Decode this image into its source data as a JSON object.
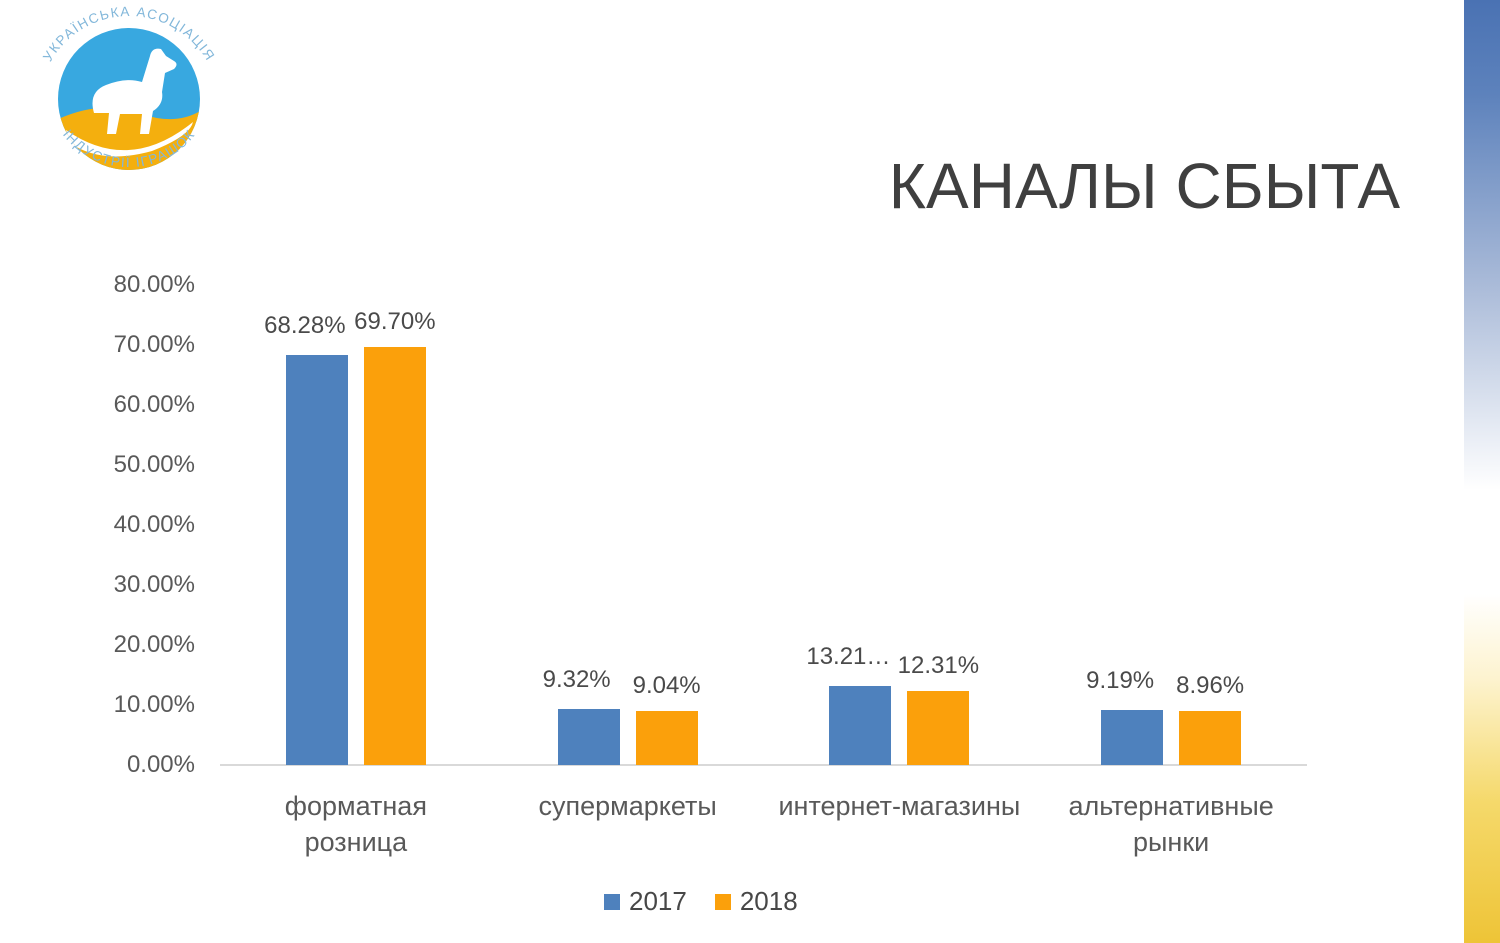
{
  "logo": {
    "arc_text_top": "УКРАЇНСЬКА АСОЦІАЦІЯ",
    "arc_text_bottom": "ІНДУСТРІЇ ІГРАШОК",
    "colors": {
      "circle_top": "#38a8e0",
      "circle_bottom": "#f4af0e",
      "arc_text": "#82b7da",
      "horse": "#ffffff"
    }
  },
  "title": "КАНАЛЫ СБЫТА",
  "chart_data": {
    "type": "bar",
    "title": "КАНАЛЫ СБЫТА",
    "categories": [
      "форматная розница",
      "супермаркеты",
      "интернет-магазины",
      "альтернативные рынки"
    ],
    "series": [
      {
        "name": "2017",
        "color": "#4e81bd",
        "values": [
          68.28,
          9.32,
          13.21,
          9.19
        ],
        "labels": [
          "68.28%",
          "9.32%",
          "13.21…",
          "9.19%"
        ]
      },
      {
        "name": "2018",
        "color": "#fba00b",
        "values": [
          69.7,
          9.04,
          12.31,
          8.96
        ],
        "labels": [
          "69.70%",
          "9.04%",
          "12.31%",
          "8.96%"
        ]
      }
    ],
    "y_axis": {
      "min": 0,
      "max": 80,
      "step": 10,
      "tick_labels": [
        "0.00%",
        "10.00%",
        "20.00%",
        "30.00%",
        "40.00%",
        "50.00%",
        "60.00%",
        "70.00%",
        "80.00%"
      ]
    },
    "grid": false,
    "legend_position": "bottom",
    "axis_line_color": "#d9d9d9"
  }
}
